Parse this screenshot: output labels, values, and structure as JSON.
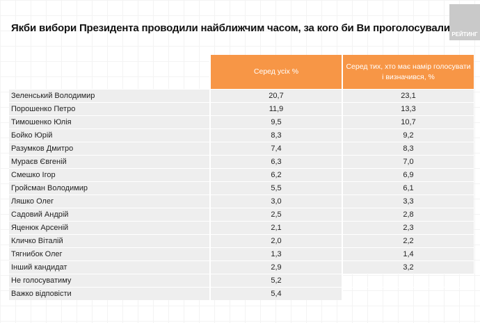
{
  "title": "Якби вибори Президента проводили найближчим часом, за кого би Ви проголосували?",
  "logo": "РЕЙТИНГ",
  "colors": {
    "header": "#f79646",
    "row": "#eeeeee"
  },
  "table": {
    "headers": [
      "Серед усіх %",
      "Серед тих, хто має намір голосувати і визначився, %"
    ],
    "rows": [
      {
        "name": "Зеленський Володимир",
        "all": "20,7",
        "decided": "23,1"
      },
      {
        "name": "Порошенко Петро",
        "all": "11,9",
        "decided": "13,3"
      },
      {
        "name": "Тимошенко Юлія",
        "all": "9,5",
        "decided": "10,7"
      },
      {
        "name": "Бойко Юрій",
        "all": "8,3",
        "decided": "9,2"
      },
      {
        "name": "Разумков Дмитро",
        "all": "7,4",
        "decided": "8,3"
      },
      {
        "name": "Мураєв Євгеній",
        "all": "6,3",
        "decided": "7,0"
      },
      {
        "name": "Смешко Ігор",
        "all": "6,2",
        "decided": "6,9"
      },
      {
        "name": "Гройсман Володимир",
        "all": "5,5",
        "decided": "6,1"
      },
      {
        "name": "Ляшко Олег",
        "all": "3,0",
        "decided": "3,3"
      },
      {
        "name": "Садовий Андрій",
        "all": "2,5",
        "decided": "2,8"
      },
      {
        "name": "Яценюк Арсеній",
        "all": "2,1",
        "decided": "2,3"
      },
      {
        "name": "Кличко Віталій",
        "all": "2,0",
        "decided": "2,2"
      },
      {
        "name": "Тягнибок Олег",
        "all": "1,3",
        "decided": "1,4"
      },
      {
        "name": "Інший кандидат",
        "all": "2,9",
        "decided": "3,2"
      },
      {
        "name": "Не голосуватиму",
        "all": "5,2",
        "decided": null
      },
      {
        "name": "Важко відповісти",
        "all": "5,4",
        "decided": null
      }
    ]
  }
}
